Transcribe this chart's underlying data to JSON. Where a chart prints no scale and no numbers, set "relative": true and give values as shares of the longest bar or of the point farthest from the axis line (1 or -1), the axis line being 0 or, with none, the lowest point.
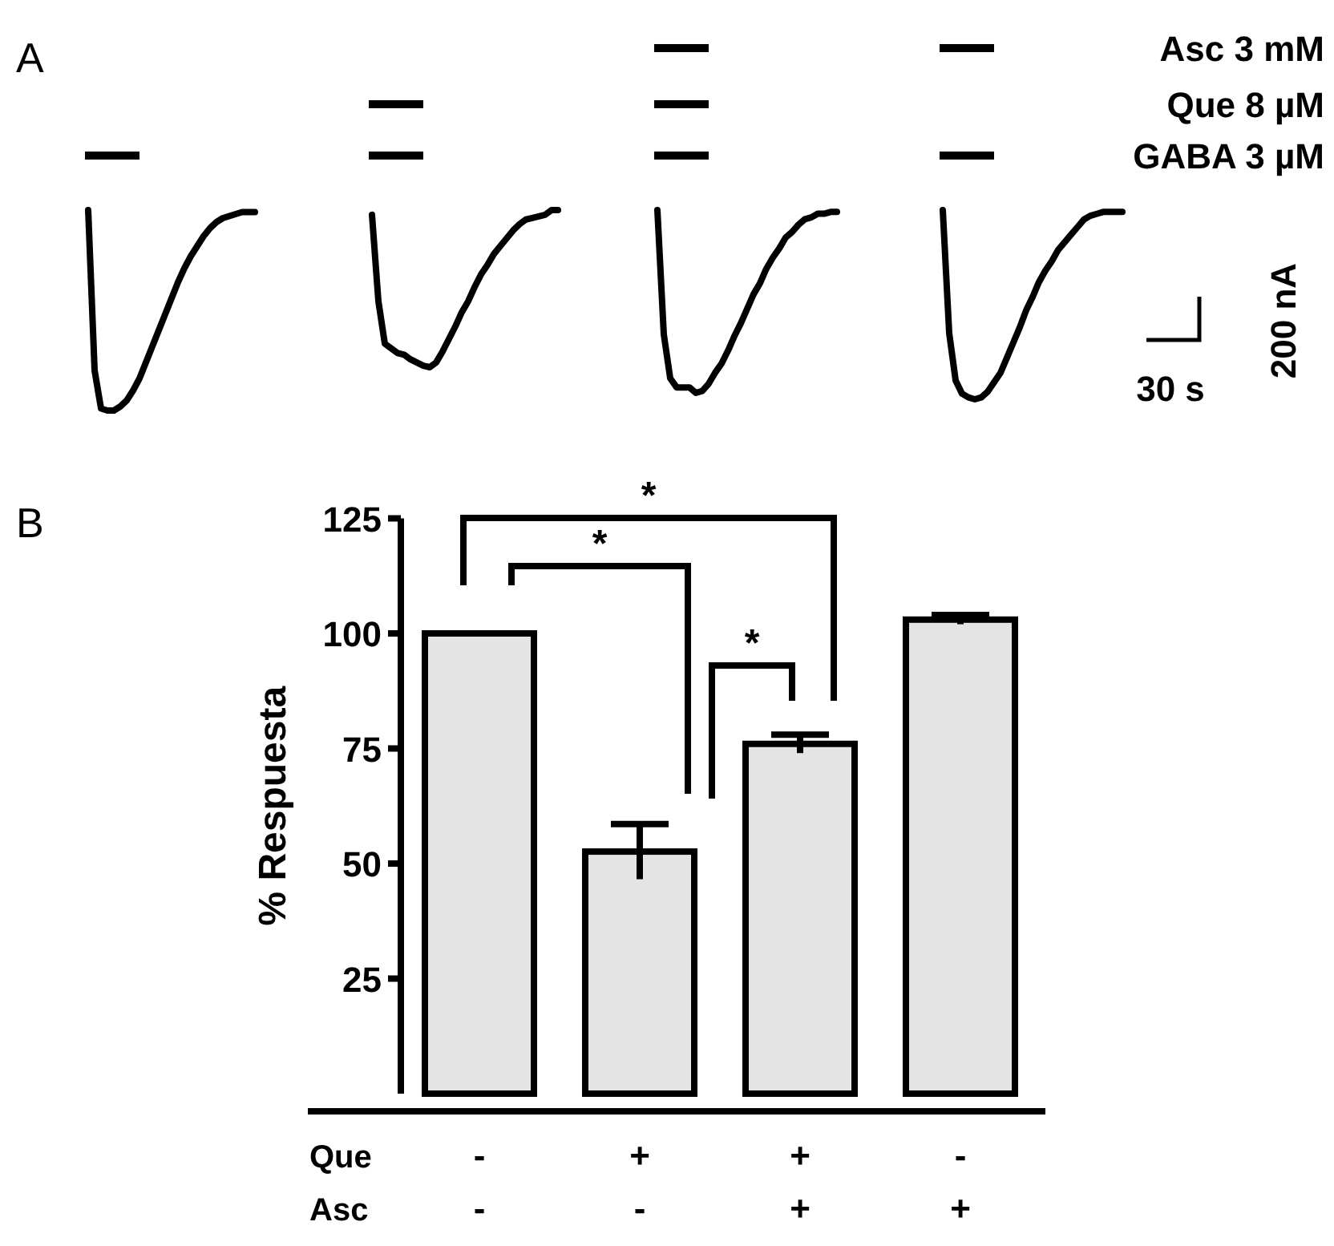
{
  "chart_data": [
    {
      "type": "line",
      "relative": true,
      "annotations": [
        "A"
      ],
      "categories": [
        null,
        null,
        null,
        null,
        null,
        null,
        null,
        null,
        null,
        null,
        null,
        null,
        null,
        null,
        null,
        null,
        null,
        null,
        null,
        null,
        null,
        null,
        null,
        null,
        null,
        null,
        null
      ],
      "series": [
        {
          "color": "#000000",
          "values": [
            1,
            0.2,
            0.01,
            0,
            0,
            0.02,
            0.05,
            0.1,
            0.16,
            0.24,
            0.32,
            0.4,
            0.48,
            0.56,
            0.64,
            0.71,
            0.77,
            0.82,
            0.87,
            0.91,
            0.94,
            0.96,
            0.97,
            0.98,
            0.99,
            0.99,
            0.99
          ]
        }
      ]
    },
    {
      "type": "line",
      "relative": true,
      "categories": [
        null,
        null,
        null,
        null,
        null,
        null,
        null,
        null,
        null,
        null,
        null,
        null,
        null,
        null,
        null,
        null,
        null,
        null,
        null,
        null,
        null,
        null,
        null,
        null,
        null,
        null,
        null,
        null,
        null,
        null
      ],
      "series": [
        {
          "color": "#000000",
          "values": [
            0.97,
            0.42,
            0.15,
            0.12,
            0.09,
            0.08,
            0.05,
            0.03,
            0.01,
            0,
            0.03,
            0.1,
            0.18,
            0.26,
            0.35,
            0.42,
            0.51,
            0.59,
            0.65,
            0.72,
            0.77,
            0.82,
            0.87,
            0.91,
            0.94,
            0.95,
            0.96,
            0.97,
            1,
            1
          ]
        }
      ]
    },
    {
      "type": "line",
      "relative": true,
      "categories": [
        null,
        null,
        null,
        null,
        null,
        null,
        null,
        null,
        null,
        null,
        null,
        null,
        null,
        null,
        null,
        null,
        null,
        null,
        null,
        null,
        null,
        null,
        null,
        null,
        null,
        null,
        null,
        null,
        null
      ],
      "series": [
        {
          "color": "#000000",
          "values": [
            1,
            0.32,
            0.08,
            0.03,
            0.03,
            0.03,
            0,
            0.01,
            0.05,
            0.11,
            0.16,
            0.23,
            0.31,
            0.38,
            0.46,
            0.54,
            0.6,
            0.68,
            0.74,
            0.79,
            0.85,
            0.88,
            0.92,
            0.95,
            0.96,
            0.98,
            0.98,
            0.99,
            0.99
          ]
        }
      ]
    },
    {
      "type": "line",
      "relative": true,
      "annotations": [
        "Asc 3 mM",
        "Que 8 µM",
        "GABA 3 µM",
        "200 nA",
        "30 s"
      ],
      "categories": [
        null,
        null,
        null,
        null,
        null,
        null,
        null,
        null,
        null,
        null,
        null,
        null,
        null,
        null,
        null,
        null,
        null,
        null,
        null,
        null,
        null,
        null,
        null,
        null,
        null,
        null,
        null,
        null,
        null
      ],
      "series": [
        {
          "color": "#000000",
          "values": [
            1,
            0.35,
            0.1,
            0.03,
            0.01,
            0,
            0.01,
            0.04,
            0.09,
            0.14,
            0.22,
            0.3,
            0.38,
            0.47,
            0.54,
            0.62,
            0.68,
            0.73,
            0.79,
            0.83,
            0.87,
            0.91,
            0.95,
            0.97,
            0.98,
            0.99,
            0.99,
            0.99,
            0.99
          ]
        }
      ]
    },
    {
      "type": "bar",
      "categories": [
        "-\n-",
        "+\n-",
        "+\n+",
        "-\n+"
      ],
      "values": [
        100,
        52.6,
        76,
        103
      ],
      "errors": [
        null,
        6,
        2,
        1
      ],
      "color": "#e4e4e4",
      "ylim": [
        0,
        125
      ],
      "yticks": [
        25,
        50,
        75,
        100,
        125
      ],
      "ylabel": "% Respuesta",
      "annotations": [
        "B",
        "Que",
        "Asc",
        "*",
        "*",
        "*"
      ]
    }
  ]
}
